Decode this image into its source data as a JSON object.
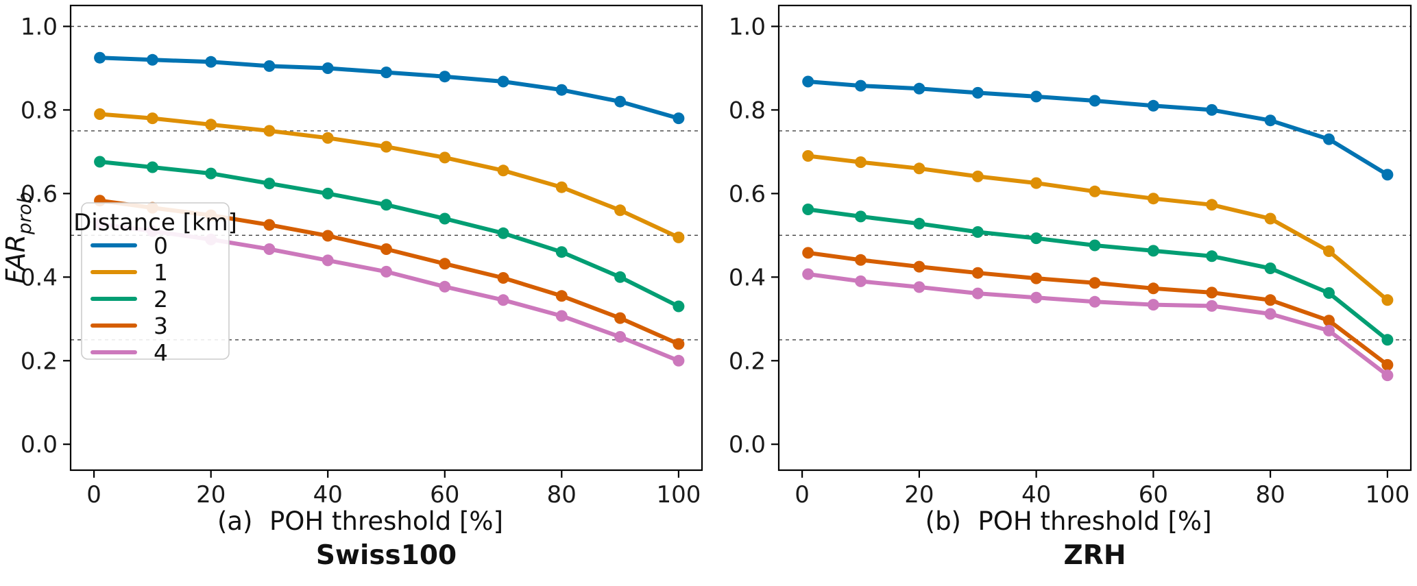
{
  "figure": {
    "background": "#ffffff",
    "axis_color": "#000000",
    "text_color": "#1a1a1a",
    "grid_color": "#404040"
  },
  "legend": {
    "title": "Distance [km]",
    "entries": [
      {
        "label": "0",
        "color": "#0173B2"
      },
      {
        "label": "1",
        "color": "#DE8F05"
      },
      {
        "label": "2",
        "color": "#029E73"
      },
      {
        "label": "3",
        "color": "#D55E00"
      },
      {
        "label": "4",
        "color": "#CC78BC"
      }
    ]
  },
  "chart_data": [
    {
      "type": "line",
      "panel_label": "(a)",
      "title": "Swiss100",
      "xlabel": "POH threshold [%]",
      "ylabel": "FAR_prob",
      "legend_visible": true,
      "legend_position": "center-left",
      "grid": "dashed-horizontal",
      "x": [
        1,
        10,
        20,
        30,
        40,
        50,
        60,
        70,
        80,
        90,
        100
      ],
      "xticks": [
        0,
        20,
        40,
        60,
        80,
        100
      ],
      "yticks": [
        0.0,
        0.2,
        0.4,
        0.6,
        0.8,
        1.0
      ],
      "xlim": [
        -4,
        104
      ],
      "ylim": [
        -0.062,
        1.05
      ],
      "gridlines_y": [
        0.25,
        0.5,
        0.75,
        1.0
      ],
      "series": [
        {
          "name": "0",
          "color": "#0173B2",
          "values": [
            0.925,
            0.92,
            0.915,
            0.905,
            0.9,
            0.89,
            0.88,
            0.868,
            0.848,
            0.82,
            0.78
          ]
        },
        {
          "name": "1",
          "color": "#DE8F05",
          "values": [
            0.79,
            0.78,
            0.765,
            0.75,
            0.733,
            0.712,
            0.686,
            0.655,
            0.615,
            0.56,
            0.495
          ]
        },
        {
          "name": "2",
          "color": "#029E73",
          "values": [
            0.676,
            0.663,
            0.648,
            0.624,
            0.6,
            0.573,
            0.54,
            0.505,
            0.46,
            0.4,
            0.33
          ]
        },
        {
          "name": "3",
          "color": "#D55E00",
          "values": [
            0.583,
            0.566,
            0.548,
            0.525,
            0.499,
            0.467,
            0.432,
            0.398,
            0.355,
            0.302,
            0.24
          ]
        },
        {
          "name": "4",
          "color": "#CC78BC",
          "values": [
            0.527,
            0.51,
            0.49,
            0.467,
            0.44,
            0.413,
            0.377,
            0.345,
            0.307,
            0.257,
            0.2
          ]
        }
      ]
    },
    {
      "type": "line",
      "panel_label": "(b)",
      "title": "ZRH",
      "xlabel": "POH threshold [%]",
      "ylabel": "",
      "legend_visible": false,
      "legend_position": "none",
      "grid": "dashed-horizontal",
      "x": [
        1,
        10,
        20,
        30,
        40,
        50,
        60,
        70,
        80,
        90,
        100
      ],
      "xticks": [
        0,
        20,
        40,
        60,
        80,
        100
      ],
      "yticks": [
        0.0,
        0.2,
        0.4,
        0.6,
        0.8,
        1.0
      ],
      "xlim": [
        -4,
        104
      ],
      "ylim": [
        -0.062,
        1.05
      ],
      "gridlines_y": [
        0.25,
        0.5,
        0.75,
        1.0
      ],
      "series": [
        {
          "name": "0",
          "color": "#0173B2",
          "values": [
            0.868,
            0.858,
            0.851,
            0.841,
            0.832,
            0.822,
            0.81,
            0.8,
            0.775,
            0.73,
            0.645
          ]
        },
        {
          "name": "1",
          "color": "#DE8F05",
          "values": [
            0.69,
            0.675,
            0.66,
            0.641,
            0.625,
            0.605,
            0.588,
            0.573,
            0.54,
            0.462,
            0.345
          ]
        },
        {
          "name": "2",
          "color": "#029E73",
          "values": [
            0.562,
            0.545,
            0.528,
            0.508,
            0.493,
            0.476,
            0.463,
            0.45,
            0.421,
            0.362,
            0.25
          ]
        },
        {
          "name": "3",
          "color": "#D55E00",
          "values": [
            0.458,
            0.441,
            0.425,
            0.41,
            0.397,
            0.386,
            0.373,
            0.363,
            0.345,
            0.296,
            0.19
          ]
        },
        {
          "name": "4",
          "color": "#CC78BC",
          "values": [
            0.407,
            0.39,
            0.376,
            0.361,
            0.351,
            0.341,
            0.334,
            0.331,
            0.312,
            0.272,
            0.165
          ]
        }
      ]
    }
  ]
}
